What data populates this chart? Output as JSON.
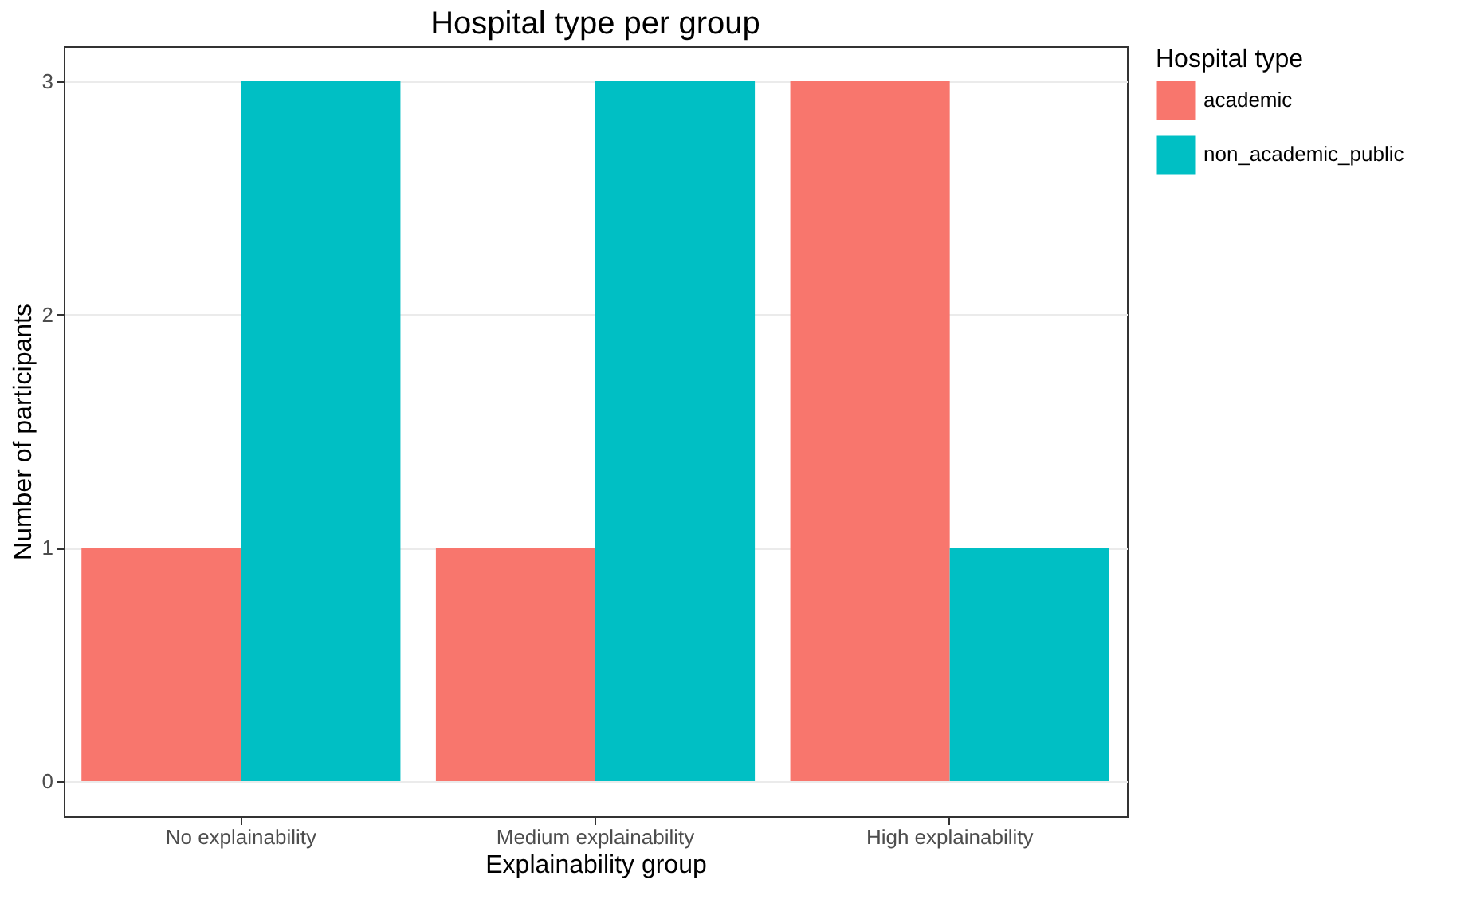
{
  "chart_data": {
    "type": "bar",
    "title": "Hospital type per group",
    "xlabel": "Explainability group",
    "ylabel": "Number of participants",
    "legend_title": "Hospital type",
    "categories": [
      "No explainability",
      "Medium explainability",
      "High explainability"
    ],
    "series": [
      {
        "name": "academic",
        "color": "#f8766d",
        "values": [
          1,
          1,
          3
        ]
      },
      {
        "name": "non_academic_public",
        "color": "#00bfc4",
        "values": [
          3,
          3,
          1
        ]
      }
    ],
    "ylim": [
      -0.15,
      3.15
    ],
    "yticks": [
      0,
      1,
      2,
      3
    ],
    "grid": "y",
    "legend": "right"
  }
}
